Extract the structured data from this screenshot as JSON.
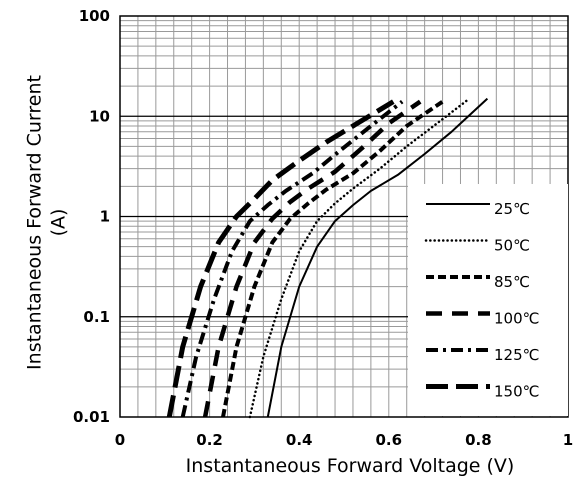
{
  "chart_data": {
    "type": "line",
    "title": "",
    "xlabel": "Instantaneous Forward Voltage (V)",
    "ylabel": "Instantaneous Forward Current (A)",
    "xlim": [
      0,
      1
    ],
    "ylim": [
      0.01,
      100
    ],
    "y_scale": "log",
    "grid": true,
    "legend_position": "bottom-right",
    "x_ticks": [
      "0",
      "0.2",
      "0.4",
      "0.6",
      "0.8",
      "1"
    ],
    "y_ticks": [
      "0.01",
      "0.1",
      "1",
      "10",
      "100"
    ],
    "series": [
      {
        "name": "25℃",
        "dash": "solid",
        "points": [
          [
            0.33,
            0.01
          ],
          [
            0.36,
            0.05
          ],
          [
            0.4,
            0.2
          ],
          [
            0.44,
            0.5
          ],
          [
            0.48,
            0.9
          ],
          [
            0.52,
            1.3
          ],
          [
            0.56,
            1.8
          ],
          [
            0.62,
            2.6
          ],
          [
            0.68,
            4.2
          ],
          [
            0.74,
            7.0
          ],
          [
            0.82,
            15
          ]
        ]
      },
      {
        "name": "50℃",
        "dash": "dotted",
        "points": [
          [
            0.29,
            0.01
          ],
          [
            0.32,
            0.04
          ],
          [
            0.36,
            0.15
          ],
          [
            0.4,
            0.45
          ],
          [
            0.44,
            0.9
          ],
          [
            0.48,
            1.35
          ],
          [
            0.52,
            1.9
          ],
          [
            0.58,
            3.0
          ],
          [
            0.64,
            5.0
          ],
          [
            0.7,
            8.0
          ],
          [
            0.78,
            15
          ]
        ]
      },
      {
        "name": "85℃",
        "dash": "dashed",
        "points": [
          [
            0.23,
            0.01
          ],
          [
            0.26,
            0.05
          ],
          [
            0.3,
            0.2
          ],
          [
            0.34,
            0.55
          ],
          [
            0.38,
            0.95
          ],
          [
            0.42,
            1.35
          ],
          [
            0.46,
            1.85
          ],
          [
            0.52,
            2.7
          ],
          [
            0.58,
            4.5
          ],
          [
            0.64,
            8.0
          ],
          [
            0.72,
            14
          ]
        ]
      },
      {
        "name": "100℃",
        "dash": "long-dash",
        "points": [
          [
            0.19,
            0.01
          ],
          [
            0.22,
            0.05
          ],
          [
            0.26,
            0.2
          ],
          [
            0.3,
            0.55
          ],
          [
            0.34,
            0.95
          ],
          [
            0.38,
            1.4
          ],
          [
            0.42,
            1.9
          ],
          [
            0.48,
            2.8
          ],
          [
            0.54,
            4.8
          ],
          [
            0.6,
            8.5
          ],
          [
            0.67,
            14
          ]
        ]
      },
      {
        "name": "125℃",
        "dash": "dash-dot",
        "points": [
          [
            0.14,
            0.01
          ],
          [
            0.17,
            0.04
          ],
          [
            0.21,
            0.15
          ],
          [
            0.25,
            0.45
          ],
          [
            0.29,
            0.9
          ],
          [
            0.33,
            1.3
          ],
          [
            0.37,
            1.8
          ],
          [
            0.43,
            2.7
          ],
          [
            0.49,
            4.5
          ],
          [
            0.56,
            8.0
          ],
          [
            0.63,
            14
          ]
        ]
      },
      {
        "name": "150℃",
        "dash": "heavy-dash",
        "points": [
          [
            0.11,
            0.01
          ],
          [
            0.14,
            0.05
          ],
          [
            0.18,
            0.2
          ],
          [
            0.22,
            0.55
          ],
          [
            0.26,
            1.0
          ],
          [
            0.3,
            1.5
          ],
          [
            0.34,
            2.3
          ],
          [
            0.4,
            3.6
          ],
          [
            0.46,
            5.5
          ],
          [
            0.53,
            8.5
          ],
          [
            0.61,
            14
          ]
        ]
      }
    ]
  }
}
